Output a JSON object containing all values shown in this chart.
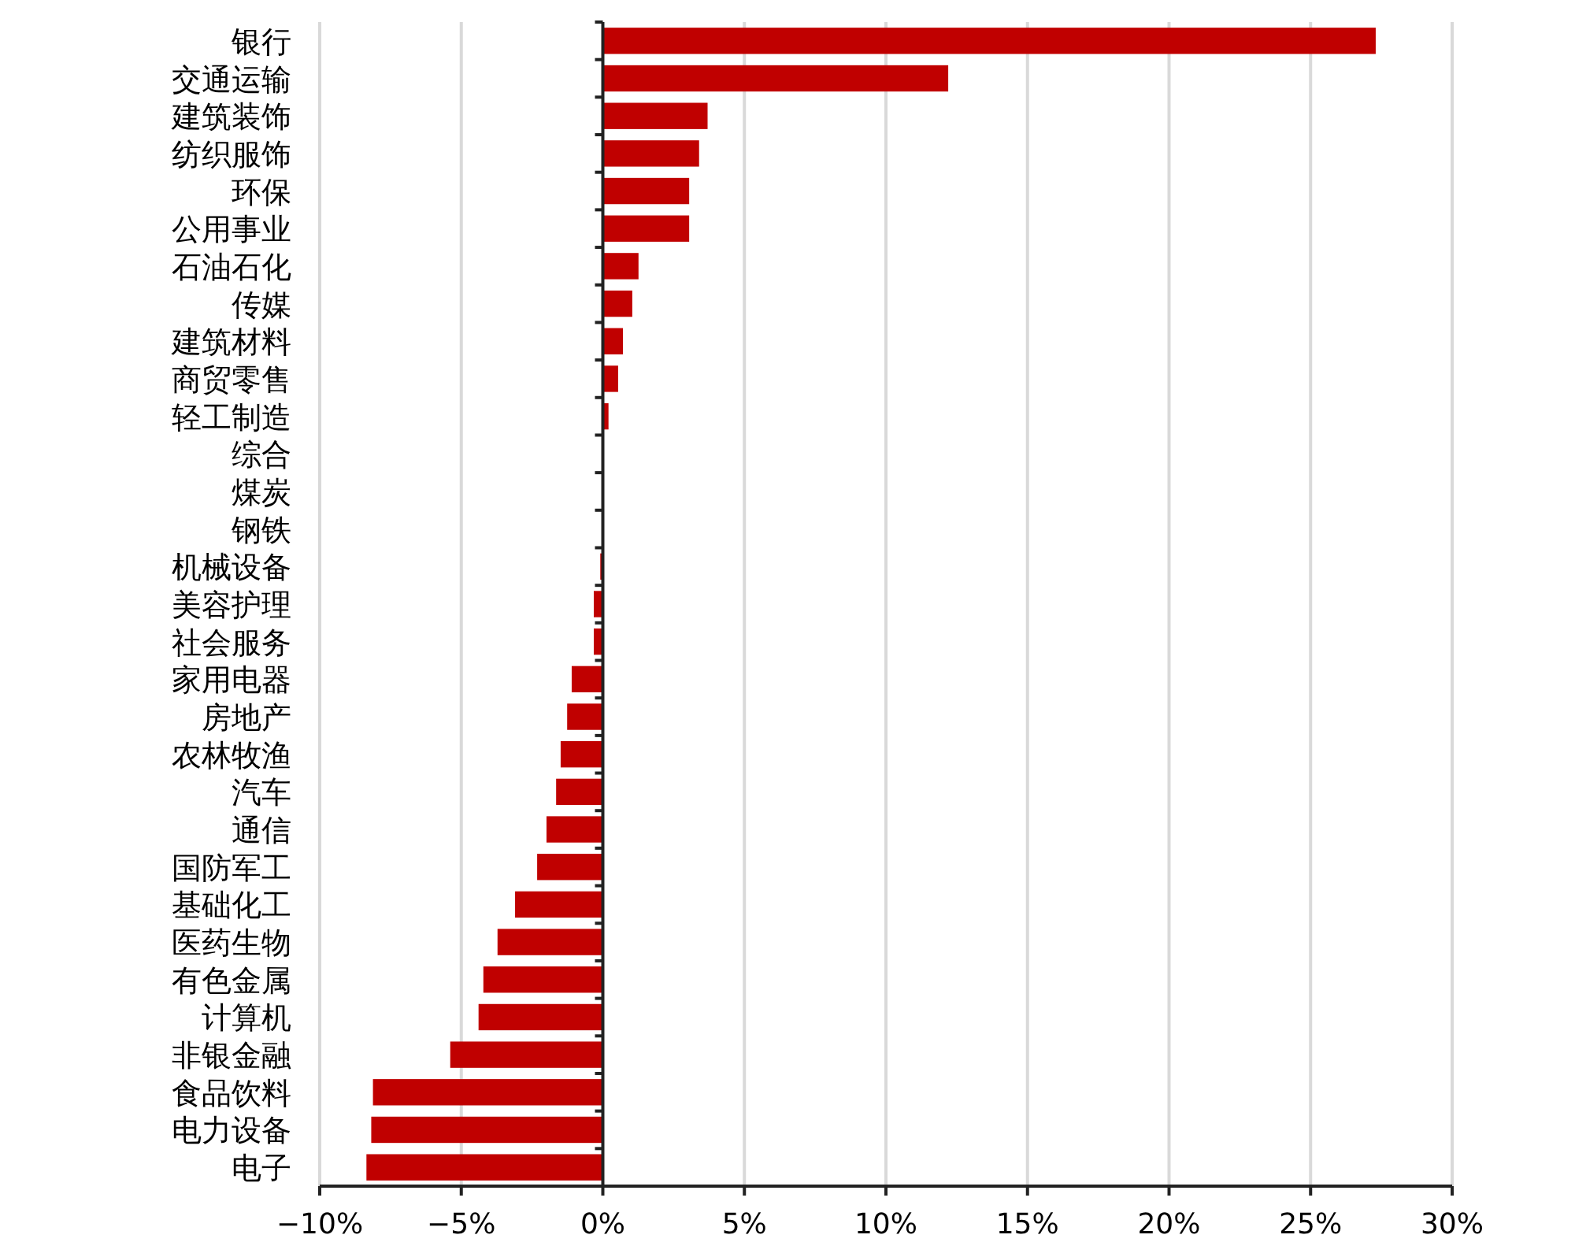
{
  "chart_data": {
    "type": "bar",
    "orientation": "horizontal",
    "categories": [
      "银行",
      "交通运输",
      "建筑装饰",
      "纺织服饰",
      "环保",
      "公用事业",
      "石油石化",
      "传媒",
      "建筑材料",
      "商贸零售",
      "轻工制造",
      "综合",
      "煤炭",
      "钢铁",
      "机械设备",
      "美容护理",
      "社会服务",
      "家用电器",
      "房地产",
      "农林牧渔",
      "汽车",
      "通信",
      "国防军工",
      "基础化工",
      "医药生物",
      "有色金属",
      "计算机",
      "非银金融",
      "食品饮料",
      "电力设备",
      "电子"
    ],
    "values": [
      27.3,
      12.2,
      3.7,
      3.4,
      3.05,
      3.05,
      1.26,
      1.04,
      0.71,
      0.54,
      0.2,
      0,
      0,
      0,
      -0.09,
      -0.32,
      -0.32,
      -1.1,
      -1.26,
      -1.49,
      -1.65,
      -1.99,
      -2.32,
      -3.1,
      -3.72,
      -4.22,
      -4.39,
      -5.39,
      -8.12,
      -8.18,
      -8.35
    ],
    "color": "#c00000",
    "xlim": [
      -10,
      30
    ],
    "xticks": [
      {
        "value": -10,
        "label": "−10%"
      },
      {
        "value": -5,
        "label": "−5%"
      },
      {
        "value": 0,
        "label": "0%"
      },
      {
        "value": 5,
        "label": "5%"
      },
      {
        "value": 10,
        "label": "10%"
      },
      {
        "value": 15,
        "label": "15%"
      },
      {
        "value": 20,
        "label": "20%"
      },
      {
        "value": 25,
        "label": "25%"
      },
      {
        "value": 30,
        "label": "30%"
      }
    ],
    "grid": "x"
  }
}
